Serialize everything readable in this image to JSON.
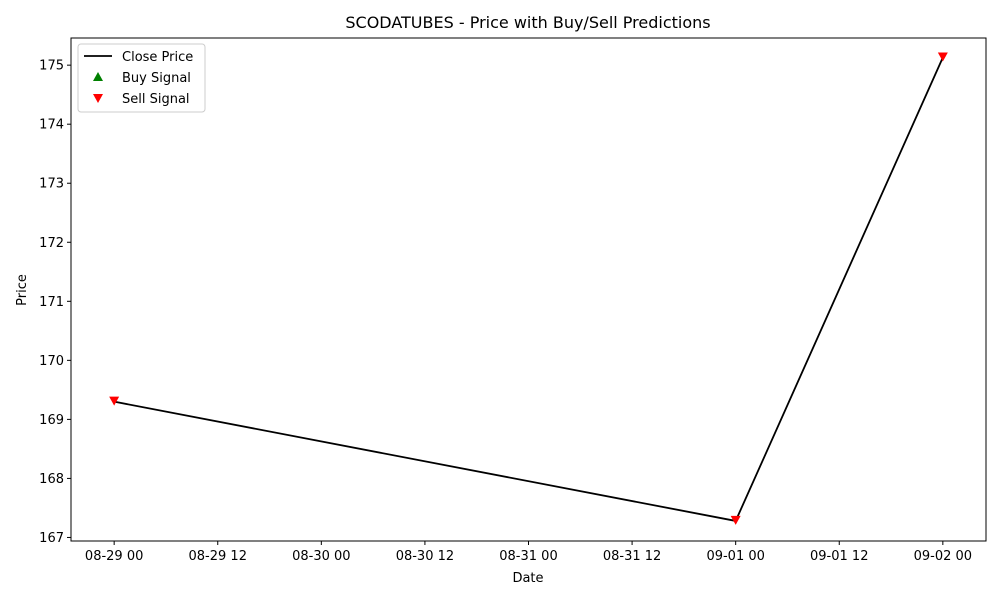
{
  "chart_data": {
    "type": "line",
    "title": "SCODATUBES - Price with Buy/Sell Predictions",
    "xlabel": "Date",
    "ylabel": "Price",
    "x_ticks": [
      "08-29 00",
      "08-29 12",
      "08-30 00",
      "08-30 12",
      "08-31 00",
      "08-31 12",
      "09-01 00",
      "09-01 12",
      "09-02 00"
    ],
    "y_ticks": [
      167,
      168,
      169,
      170,
      171,
      172,
      173,
      174,
      175
    ],
    "xlim_hours": [
      -5,
      101
    ],
    "ylim": [
      166.94,
      175.46
    ],
    "legend_position": "top-left",
    "legend": [
      "Close Price",
      "Buy Signal",
      "Sell Signal"
    ],
    "series": [
      {
        "name": "Close Price",
        "color": "#000000",
        "points": [
          {
            "date": "08-29 00",
            "price": 169.3
          },
          {
            "date": "09-01 00",
            "price": 167.28
          },
          {
            "date": "09-02 00",
            "price": 175.13
          }
        ]
      },
      {
        "name": "Buy Signal",
        "color": "#008000",
        "marker": "triangle-up",
        "points": []
      },
      {
        "name": "Sell Signal",
        "color": "#ff0000",
        "marker": "triangle-down",
        "points": [
          {
            "date": "08-29 00",
            "price": 169.3
          },
          {
            "date": "09-01 00",
            "price": 167.28
          },
          {
            "date": "09-02 00",
            "price": 175.13
          }
        ]
      }
    ]
  }
}
